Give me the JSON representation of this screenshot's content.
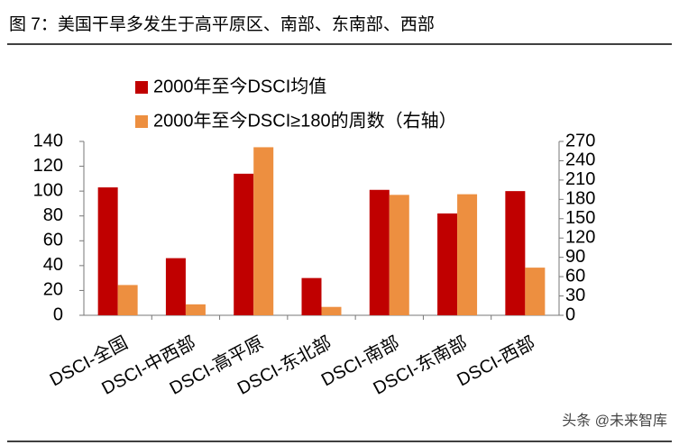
{
  "chart_data": {
    "type": "bar",
    "title": "图 7：美国干旱多发生于高平原区、南部、东南部、西部",
    "categories": [
      "DSCI-全国",
      "DSCI-中西部",
      "DSCI-高平原",
      "DSCI-东北部",
      "DSCI-南部",
      "DSCI-东南部",
      "DSCI-西部"
    ],
    "series": [
      {
        "name": "2000年至今DSCI均值",
        "color": "#c00000",
        "values": [
          103,
          46,
          114,
          30,
          101,
          82,
          100
        ]
      },
      {
        "name": "2000年至今DSCI≥180的周数（右轴）",
        "color": "#ed8f40",
        "axis": "y2",
        "values": [
          47,
          17,
          261,
          13,
          187,
          188,
          74
        ]
      }
    ],
    "ylim": [
      0,
      140
    ],
    "yticks": [
      0,
      20,
      40,
      60,
      80,
      100,
      120,
      140
    ],
    "y2lim": [
      0,
      270
    ],
    "y2ticks": [
      0,
      30,
      60,
      90,
      120,
      150,
      180,
      210,
      240,
      270
    ],
    "grid": false,
    "watermark": "头条 @未来智库"
  }
}
